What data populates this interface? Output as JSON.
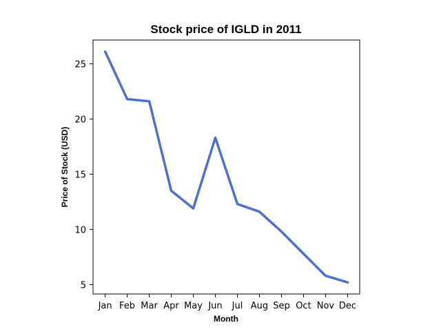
{
  "chart_data": {
    "type": "line",
    "title": "Stock price of IGLD in 2011",
    "xlabel": "Month",
    "ylabel": "Price of Stock (USD)",
    "categories": [
      "Jan",
      "Feb",
      "Mar",
      "Apr",
      "May",
      "Jun",
      "Jul",
      "Aug",
      "Sep",
      "Oct",
      "Nov",
      "Dec"
    ],
    "series": [
      {
        "values": [
          26.1,
          21.8,
          21.6,
          13.5,
          11.9,
          18.3,
          12.3,
          11.6,
          9.8,
          7.8,
          5.8,
          5.2
        ],
        "color": "#4c6fd1"
      }
    ],
    "yticks": [
      5,
      10,
      15,
      20,
      25
    ],
    "ylim": [
      4.15,
      27.15
    ],
    "grid": false,
    "legend": false
  }
}
